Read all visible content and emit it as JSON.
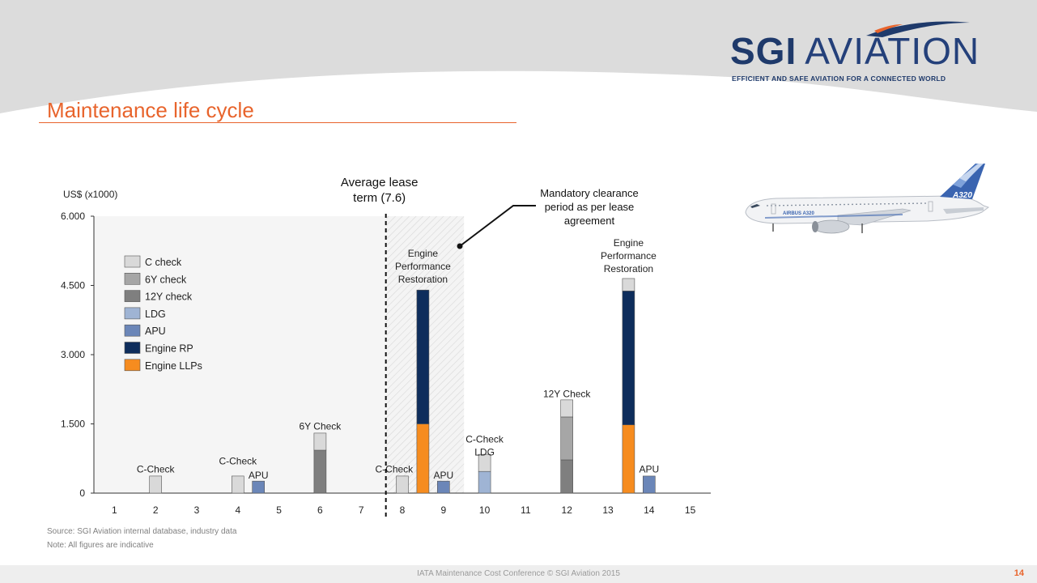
{
  "brand": {
    "name_bold": "SGI",
    "name_thin": "AVIATION",
    "tagline": "EFFICIENT AND SAFE AVIATION FOR A CONNECTED WORLD",
    "primary_color": "#1f3a6b",
    "accent_color": "#e8642c"
  },
  "page": {
    "title": "Maintenance life cycle",
    "page_number": "14"
  },
  "aircraft": {
    "tail_text": "A320",
    "body_text": "AIRBUS A320"
  },
  "chart_data": {
    "type": "bar",
    "stacked": true,
    "ylabel": "US$ (x1000)",
    "ylim": [
      0,
      6000
    ],
    "yticks": [
      0,
      1500,
      3000,
      4500,
      6000
    ],
    "ytick_labels": [
      "0",
      "1.500",
      "3.000",
      "4.500",
      "6.000"
    ],
    "xlim": [
      0.5,
      15.5
    ],
    "xticks": [
      1,
      2,
      3,
      4,
      5,
      6,
      7,
      8,
      9,
      10,
      11,
      12,
      13,
      14,
      15
    ],
    "xtick_labels": [
      "1",
      "2",
      "3",
      "4",
      "5",
      "6",
      "7",
      "8",
      "9",
      "10",
      "11",
      "12",
      "13",
      "14",
      "15"
    ],
    "legend": {
      "placement": "top-left",
      "items": [
        {
          "label": "C check",
          "color": "#d9d9d9"
        },
        {
          "label": "6Y check",
          "color": "#a6a6a6"
        },
        {
          "label": "12Y check",
          "color": "#7f7f7f"
        },
        {
          "label": "LDG",
          "color": "#9fb4d4"
        },
        {
          "label": "APU",
          "color": "#6b86b8"
        },
        {
          "label": "Engine RP",
          "color": "#0e2d5c"
        },
        {
          "label": "Engine LLPs",
          "color": "#f68c1f"
        }
      ]
    },
    "bars": [
      {
        "x": 2,
        "segments": [
          {
            "series": "C check",
            "value": 370
          }
        ]
      },
      {
        "x": 4,
        "segments": [
          {
            "series": "C check",
            "value": 370
          }
        ]
      },
      {
        "x": 4.5,
        "segments": [
          {
            "series": "APU",
            "value": 260
          }
        ]
      },
      {
        "x": 6,
        "segments": [
          {
            "series": "12Y check",
            "value": 930
          },
          {
            "series": "C check",
            "value": 370
          }
        ]
      },
      {
        "x": 8,
        "segments": [
          {
            "series": "C check",
            "value": 370
          }
        ]
      },
      {
        "x": 8.5,
        "segments": [
          {
            "series": "Engine LLPs",
            "value": 1500
          },
          {
            "series": "Engine RP",
            "value": 2900
          }
        ]
      },
      {
        "x": 9,
        "segments": [
          {
            "series": "APU",
            "value": 260
          }
        ]
      },
      {
        "x": 10,
        "segments": [
          {
            "series": "LDG",
            "value": 470
          },
          {
            "series": "C check",
            "value": 370
          }
        ]
      },
      {
        "x": 12,
        "segments": [
          {
            "series": "12Y check",
            "value": 720
          },
          {
            "series": "6Y check",
            "value": 930
          },
          {
            "series": "C check",
            "value": 370
          }
        ]
      },
      {
        "x": 13.5,
        "segments": [
          {
            "series": "Engine LLPs",
            "value": 1480
          },
          {
            "series": "Engine RP",
            "value": 2900
          },
          {
            "series": "C check",
            "value": 270
          }
        ]
      },
      {
        "x": 14,
        "segments": [
          {
            "series": "APU",
            "value": 370
          }
        ]
      }
    ],
    "bar_labels": [
      {
        "x": 2,
        "y": 450,
        "text": "C-Check"
      },
      {
        "x": 4,
        "y": 620,
        "text": "C-Check"
      },
      {
        "x": 4.5,
        "y": 320,
        "text": "APU"
      },
      {
        "x": 6,
        "y": 1380,
        "text": "6Y Check"
      },
      {
        "x": 7.8,
        "y": 450,
        "text": "C-Check"
      },
      {
        "x": 9,
        "y": 320,
        "text": "APU"
      },
      {
        "x": 10,
        "y": 1100,
        "text": "C-Check"
      },
      {
        "x": 10,
        "y": 820,
        "text": "LDG"
      },
      {
        "x": 12,
        "y": 2080,
        "text": "12Y Check"
      },
      {
        "x": 14,
        "y": 450,
        "text": "APU"
      },
      {
        "x": 8.5,
        "y": 5120,
        "text": "Engine"
      },
      {
        "x": 8.5,
        "y": 4840,
        "text": "Performance"
      },
      {
        "x": 8.5,
        "y": 4560,
        "text": "Restoration"
      },
      {
        "x": 13.5,
        "y": 5350,
        "text": "Engine"
      },
      {
        "x": 13.5,
        "y": 5070,
        "text": "Performance"
      },
      {
        "x": 13.5,
        "y": 4790,
        "text": "Restoration"
      }
    ],
    "lease_term": {
      "x": 7.6,
      "label_line1": "Average lease",
      "label_line2": "term (7.6)"
    },
    "clearance_period": {
      "x_start": 7.6,
      "x_end": 9.5,
      "label_line1": "Mandatory clearance",
      "label_line2": "period as per lease",
      "label_line3": "agreement"
    }
  },
  "source": "Source: SGI Aviation internal database, industry data",
  "note": "Note: All figures are indicative",
  "footer": "IATA Maintenance Cost Conference © SGI Aviation 2015"
}
